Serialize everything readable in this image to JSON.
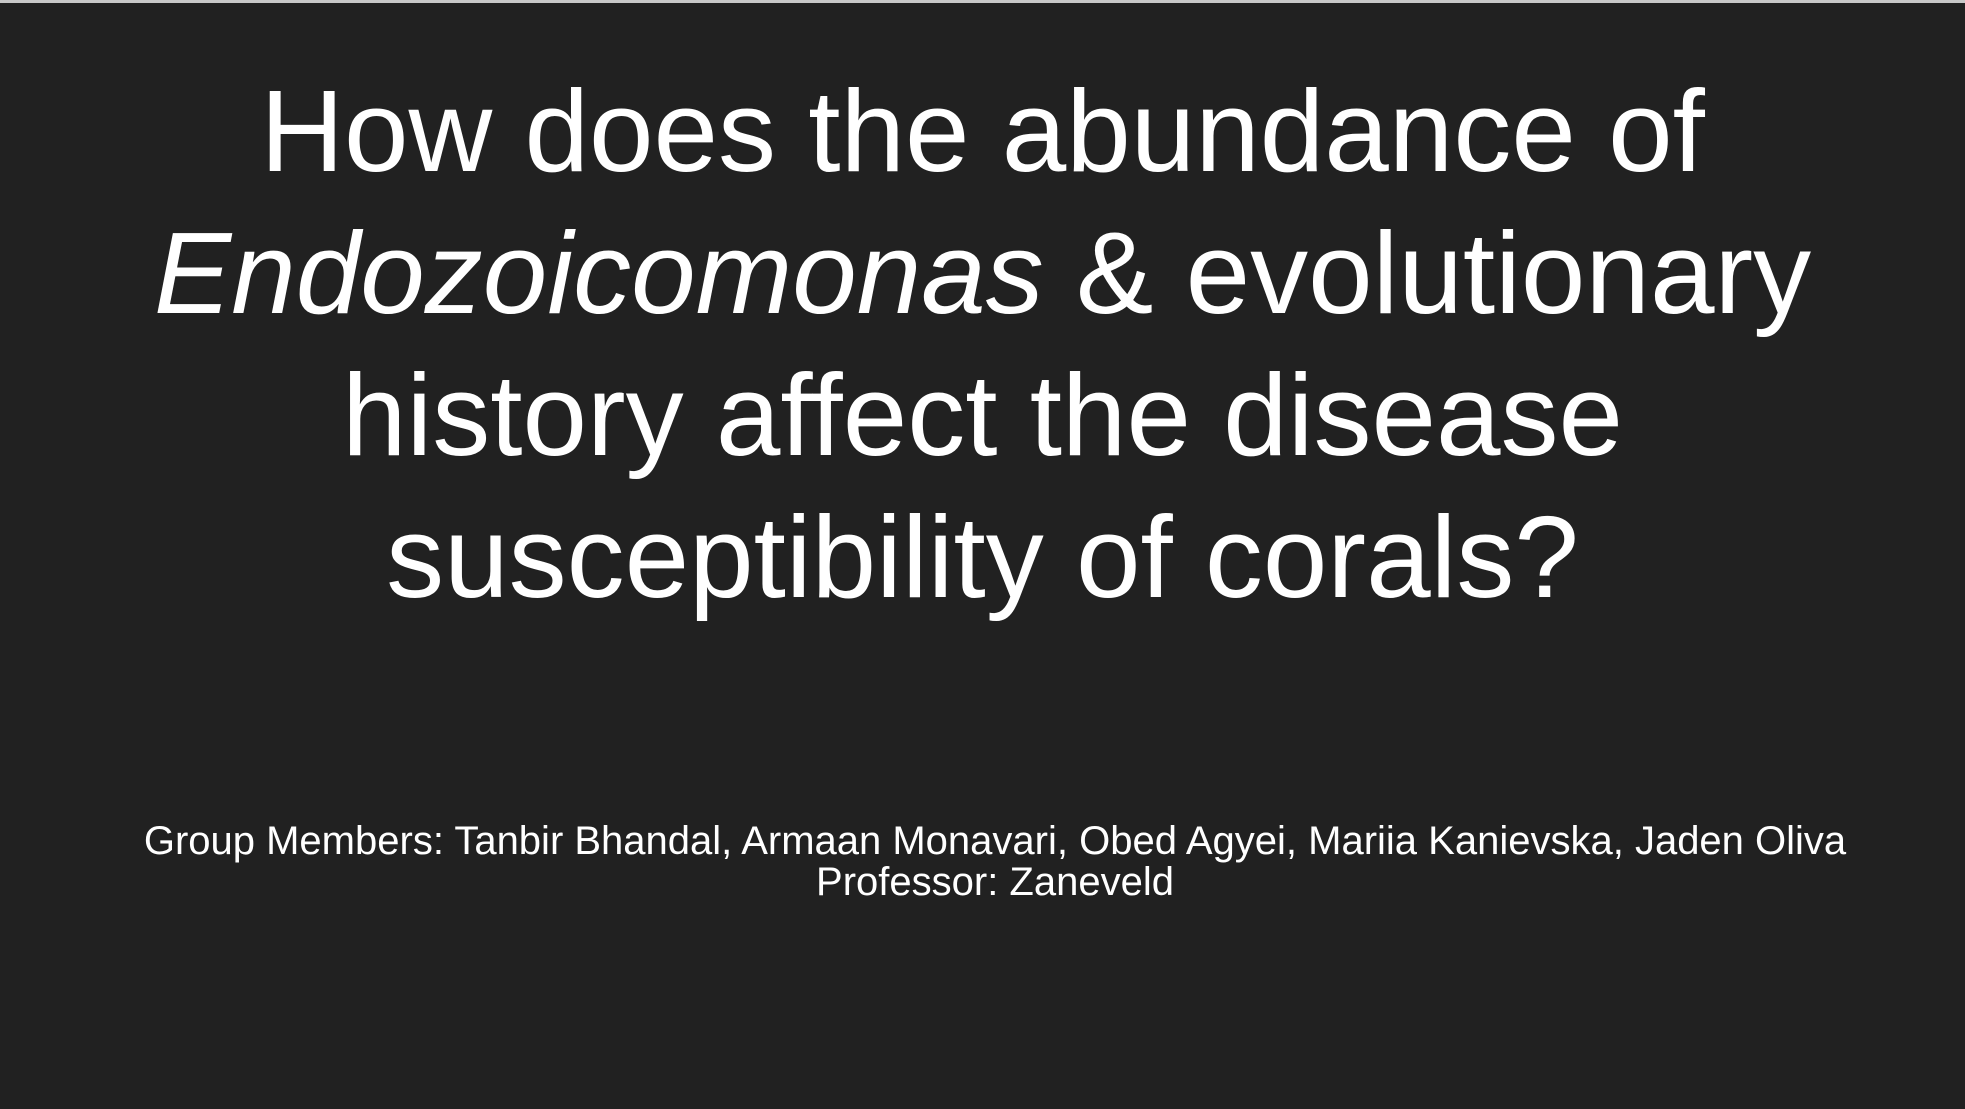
{
  "slide": {
    "title": {
      "line1": "How does the abundance of",
      "line2_italic": "Endozoicomonas",
      "line2_rest": " & evolutionary",
      "line3": "history affect the disease",
      "line4": "susceptibility of corals?"
    },
    "group_members": "Group Members: Tanbir Bhandal, Armaan Monavari, Obed Agyei, Mariia Kanievska, Jaden Oliva",
    "professor": "Professor: Zaneveld"
  },
  "colors": {
    "background": "#212121",
    "text": "#ffffff"
  }
}
